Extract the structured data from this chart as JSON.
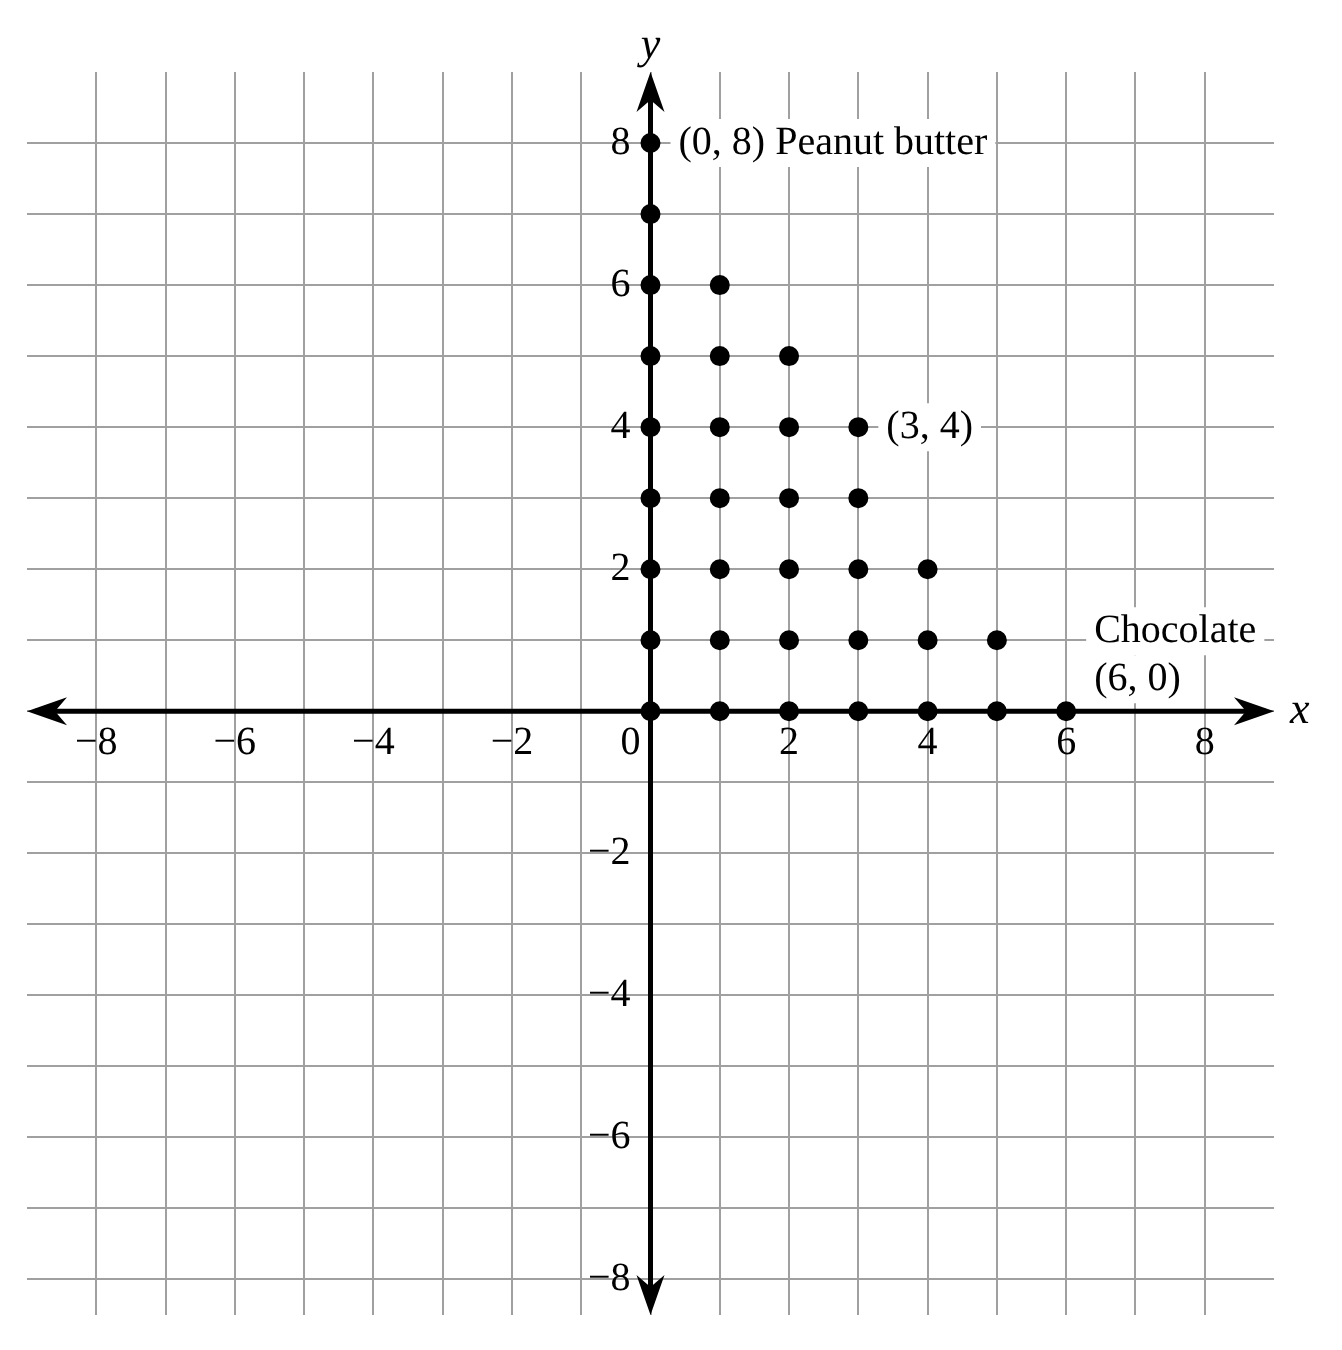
{
  "chart_data": {
    "type": "scatter",
    "xlabel": "x",
    "ylabel": "y",
    "x": [
      0,
      0,
      0,
      0,
      0,
      0,
      0,
      0,
      0,
      1,
      1,
      1,
      1,
      1,
      1,
      1,
      2,
      2,
      2,
      2,
      2,
      2,
      3,
      3,
      3,
      3,
      3,
      4,
      4,
      4,
      5,
      5,
      6
    ],
    "values": [
      0,
      1,
      2,
      3,
      4,
      5,
      6,
      7,
      8,
      0,
      1,
      2,
      3,
      4,
      5,
      6,
      0,
      1,
      2,
      3,
      4,
      5,
      0,
      1,
      2,
      3,
      4,
      0,
      1,
      2,
      0,
      1,
      0
    ],
    "color": "#000000",
    "marker": "circle",
    "grid": true,
    "xlim": [
      -9,
      9
    ],
    "ylim": [
      -8.5,
      9
    ],
    "xticks": [
      {
        "value": -8,
        "label": "−8"
      },
      {
        "value": -7,
        "label": null
      },
      {
        "value": -6,
        "label": "−6"
      },
      {
        "value": -5,
        "label": null
      },
      {
        "value": -4,
        "label": "−4"
      },
      {
        "value": -3,
        "label": null
      },
      {
        "value": -2,
        "label": "−2"
      },
      {
        "value": -1,
        "label": null
      },
      0,
      {
        "value": 1,
        "label": null
      },
      2,
      {
        "value": 3,
        "label": null
      },
      4,
      {
        "value": 5,
        "label": null
      },
      6,
      {
        "value": 7,
        "label": null
      },
      8
    ],
    "yticks": [
      {
        "value": -8,
        "label": "−8"
      },
      {
        "value": -7,
        "label": null
      },
      {
        "value": -6,
        "label": "−6"
      },
      {
        "value": -5,
        "label": null
      },
      {
        "value": -4,
        "label": "−4"
      },
      {
        "value": -3,
        "label": null
      },
      {
        "value": -2,
        "label": "−2"
      },
      {
        "value": -1,
        "label": null
      },
      {
        "value": 0,
        "label": null
      },
      {
        "value": 1,
        "label": null
      },
      2,
      {
        "value": 3,
        "label": null
      },
      4,
      {
        "value": 5,
        "label": null
      },
      6,
      {
        "value": 7,
        "label": null
      },
      8
    ],
    "annotations": [
      {
        "text": "(0, 8) Peanut butter",
        "x": 0,
        "y": 8
      },
      {
        "text": "(3, 4)",
        "x": 3,
        "y": 4
      },
      {
        "text": "Chocolate (6, 0)",
        "x": 6,
        "y": 0
      }
    ]
  }
}
